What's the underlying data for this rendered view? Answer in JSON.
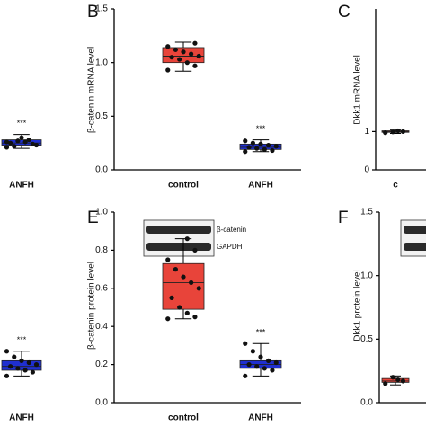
{
  "chart_data": [
    {
      "type": "box",
      "ylim": [
        0,
        1.5
      ],
      "categories": [
        null,
        "ANFH"
      ],
      "colors": [
        "#e8443a",
        "#1f2fd0"
      ],
      "boxes": [
        null,
        {
          "min": 0.2,
          "q1": 0.23,
          "median": 0.25,
          "q3": 0.28,
          "max": 0.33,
          "points": [
            0.21,
            0.24,
            0.26,
            0.27,
            0.25,
            0.23,
            0.28,
            0.3,
            0.22,
            0.26
          ]
        }
      ],
      "annotations": [
        null,
        "***"
      ]
    },
    {
      "type": "box",
      "panel": "B",
      "ylabel": "β-catenin mRNA level",
      "ylim": [
        0,
        1.5
      ],
      "yticks": [
        {
          "value": 0,
          "label": "0.0"
        },
        {
          "value": 0.5,
          "label": "0.5"
        },
        {
          "value": 1,
          "label": "1.0"
        },
        {
          "value": 1.5,
          "label": "1.5"
        }
      ],
      "categories": [
        "control",
        "ANFH"
      ],
      "colors": [
        "#e8443a",
        "#1f2fd0"
      ],
      "boxes": [
        {
          "min": 0.92,
          "q1": 1.0,
          "median": 1.06,
          "q3": 1.14,
          "max": 1.19,
          "points": [
            0.93,
            0.97,
            1.0,
            1.03,
            1.05,
            1.06,
            1.08,
            1.1,
            1.12,
            1.15,
            1.18
          ]
        },
        {
          "min": 0.17,
          "q1": 0.19,
          "median": 0.21,
          "q3": 0.24,
          "max": 0.28,
          "points": [
            0.17,
            0.18,
            0.19,
            0.2,
            0.21,
            0.22,
            0.23,
            0.24,
            0.25,
            0.27
          ]
        }
      ],
      "annotations": [
        null,
        "***"
      ]
    },
    {
      "type": "box",
      "panel": "C",
      "ylabel": "Dkk1 mRNA level",
      "ylim": [
        0,
        4.2
      ],
      "yticks": [
        0,
        1
      ],
      "categories": [
        "c"
      ],
      "colors": [
        "#e8443a"
      ],
      "boxes": [
        {
          "min": 0.95,
          "q1": 0.98,
          "median": 1.0,
          "q3": 1.02,
          "max": 1.04,
          "points": [
            0.97,
            1.0,
            1.02,
            0.99
          ]
        }
      ]
    },
    {
      "type": "box",
      "ylim": [
        0,
        1
      ],
      "categories": [
        null,
        "ANFH"
      ],
      "colors": [
        "#e8443a",
        "#1f2fd0"
      ],
      "boxes": [
        null,
        {
          "min": 0.14,
          "q1": 0.17,
          "median": 0.19,
          "q3": 0.22,
          "max": 0.27,
          "points": [
            0.14,
            0.16,
            0.17,
            0.18,
            0.19,
            0.2,
            0.21,
            0.22,
            0.24,
            0.27
          ]
        }
      ],
      "annotations": [
        null,
        "***"
      ]
    },
    {
      "type": "box",
      "panel": "E",
      "ylabel": "β-catenin protein level",
      "ylim": [
        0,
        1
      ],
      "yticks": [
        {
          "value": 0,
          "label": "0.0"
        },
        {
          "value": 0.2,
          "label": "0.2"
        },
        {
          "value": 0.4,
          "label": "0.4"
        },
        {
          "value": 0.6,
          "label": "0.6"
        },
        {
          "value": 0.8,
          "label": "0.8"
        },
        {
          "value": 1,
          "label": "1.0"
        }
      ],
      "categories": [
        "control",
        "ANFH"
      ],
      "colors": [
        "#e8443a",
        "#1f2fd0"
      ],
      "boxes": [
        {
          "min": 0.44,
          "q1": 0.49,
          "median": 0.63,
          "q3": 0.73,
          "max": 0.86,
          "points": [
            0.44,
            0.45,
            0.47,
            0.5,
            0.55,
            0.6,
            0.63,
            0.66,
            0.7,
            0.75,
            0.8,
            0.86
          ]
        },
        {
          "min": 0.14,
          "q1": 0.18,
          "median": 0.2,
          "q3": 0.22,
          "max": 0.31,
          "points": [
            0.14,
            0.17,
            0.18,
            0.19,
            0.2,
            0.21,
            0.22,
            0.24,
            0.27,
            0.31
          ]
        }
      ],
      "annotations": [
        null,
        "***"
      ],
      "blot_labels": [
        "β-catenin",
        "GAPDH"
      ]
    },
    {
      "type": "box",
      "panel": "F",
      "ylabel": "Dkk1 protein level",
      "ylim": [
        0,
        1.5
      ],
      "yticks": [
        {
          "value": 0,
          "label": "0.0"
        },
        {
          "value": 0.5,
          "label": "0.5"
        },
        {
          "value": 1,
          "label": "1.0"
        },
        {
          "value": 1.5,
          "label": "1.5"
        }
      ],
      "categories": [
        null
      ],
      "colors": [
        "#e8443a"
      ],
      "boxes": [
        {
          "min": 0.14,
          "q1": 0.16,
          "median": 0.17,
          "q3": 0.19,
          "max": 0.21,
          "points": [
            0.15,
            0.17,
            0.18,
            0.2
          ]
        }
      ]
    }
  ]
}
